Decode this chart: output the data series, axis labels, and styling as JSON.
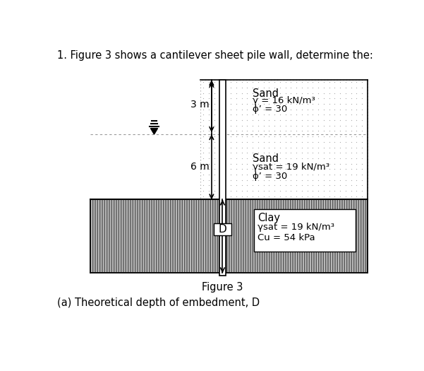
{
  "title_text": "1. Figure 3 shows a cantilever sheet pile wall, determine the:",
  "figure_label": "Figure 3",
  "bottom_text": "(a) Theoretical depth of embedment, D",
  "layer1_label": "Sand",
  "layer1_props": [
    "γ = 16 kN/m³",
    "ϕ’ = 30"
  ],
  "layer2_label": "Sand",
  "layer2_props": [
    "γsat = 19 kN/m³",
    "ϕ’ = 30"
  ],
  "layer3_label": "Clay",
  "layer3_props": [
    "γsat = 19 kN/m³",
    "Cu = 54 kPa"
  ],
  "dim1": "3 m",
  "dim2": "6 m",
  "dim3": "D",
  "bg_color": "#ffffff",
  "dot_color": "#aaaaaa",
  "clay_facecolor": "#bbbbbb",
  "wall_color": "#000000"
}
